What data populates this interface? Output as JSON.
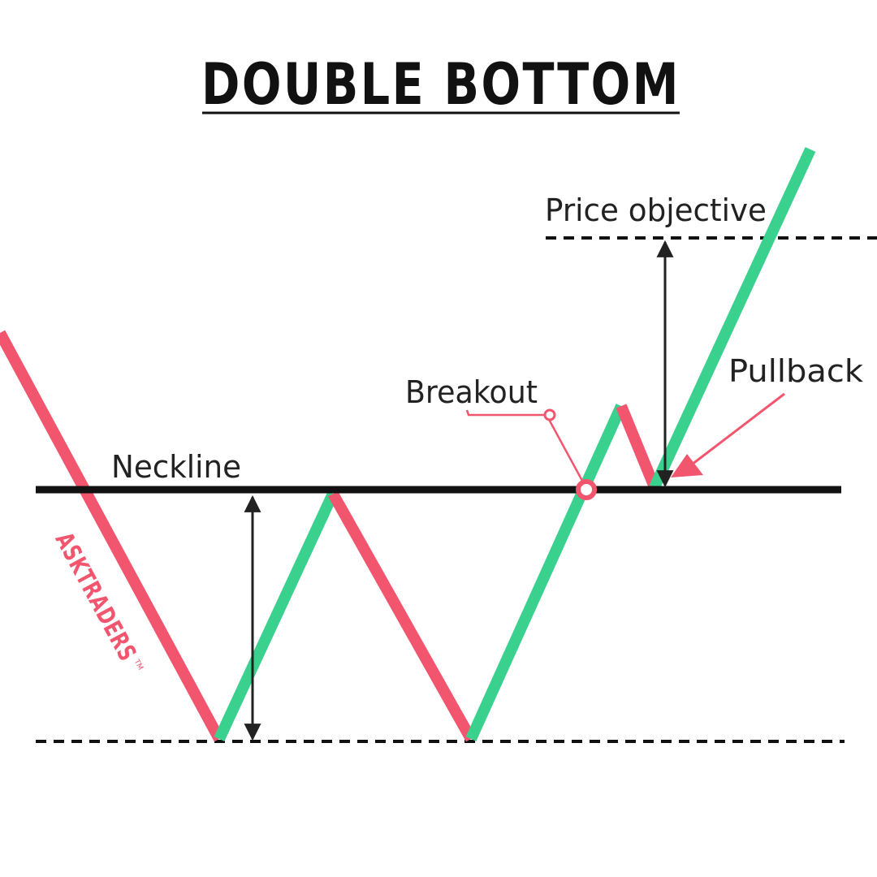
{
  "title": "DOUBLE BOTTOM",
  "labels": {
    "neckline": "Neckline",
    "breakout": "Breakout",
    "pullback": "Pullback",
    "price_objective": "Price objective"
  },
  "logo": {
    "text": "ASKTRADERS",
    "trademark": "TM"
  },
  "colors": {
    "up_segment": "#3ad18f",
    "down_segment": "#f2566f",
    "neckline": "#111111",
    "dashed_lines": "#111111",
    "measure_arrows": "#222222",
    "annotation": "#f2566f",
    "text": "#111111"
  }
}
